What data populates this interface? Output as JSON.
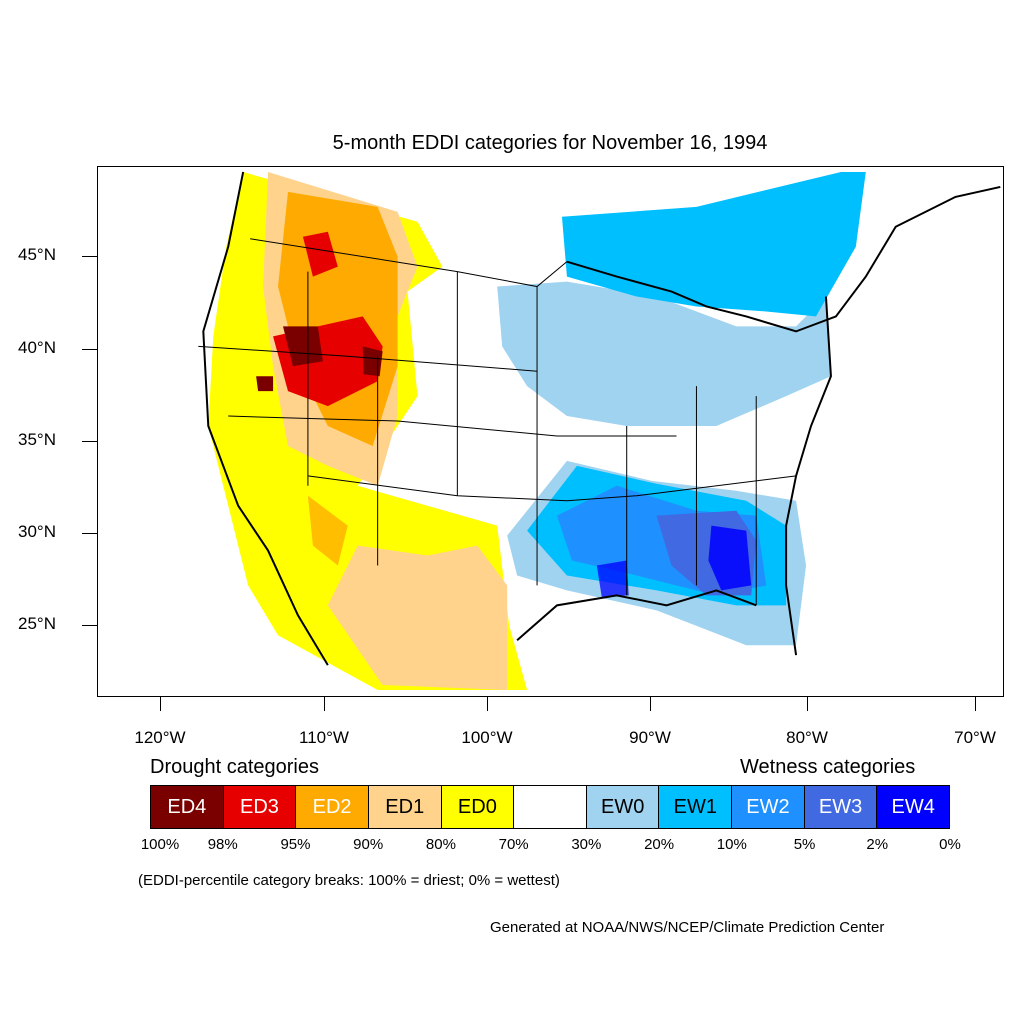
{
  "title": "5-month EDDI categories for November 16, 1994",
  "axes": {
    "lat_labels": [
      "45°N",
      "40°N",
      "35°N",
      "30°N",
      "25°N"
    ],
    "lon_labels": [
      "120°W",
      "110°W",
      "100°W",
      "90°W",
      "80°W",
      "70°W"
    ]
  },
  "legend": {
    "drought_caption": "Drought categories",
    "wetness_caption": "Wetness categories",
    "categories": [
      {
        "label": "ED4",
        "color": "#7a0000",
        "text_color": "#ffffff"
      },
      {
        "label": "ED3",
        "color": "#e60000",
        "text_color": "#ffffff"
      },
      {
        "label": "ED2",
        "color": "#ffaa00",
        "text_color": "#ffffff"
      },
      {
        "label": "ED1",
        "color": "#ffd38c",
        "text_color": "#000000"
      },
      {
        "label": "ED0",
        "color": "#ffff00",
        "text_color": "#000000"
      },
      {
        "label": "",
        "color": "#ffffff",
        "text_color": "#000000"
      },
      {
        "label": "EW0",
        "color": "#a0d3f0",
        "text_color": "#000000"
      },
      {
        "label": "EW1",
        "color": "#00bfff",
        "text_color": "#000000"
      },
      {
        "label": "EW2",
        "color": "#1e90ff",
        "text_color": "#ffffff"
      },
      {
        "label": "EW3",
        "color": "#4169e1",
        "text_color": "#ffffff"
      },
      {
        "label": "EW4",
        "color": "#0000ff",
        "text_color": "#ffffff"
      }
    ],
    "breaks": [
      "100%",
      "98%",
      "95%",
      "90%",
      "80%",
      "70%",
      "30%",
      "20%",
      "10%",
      "5%",
      "2%",
      "0%"
    ]
  },
  "note": "(EDDI-percentile category breaks: 100% = driest; 0% = wettest)",
  "credit": "Generated at NOAA/NWS/NCEP/Climate Prediction Center"
}
